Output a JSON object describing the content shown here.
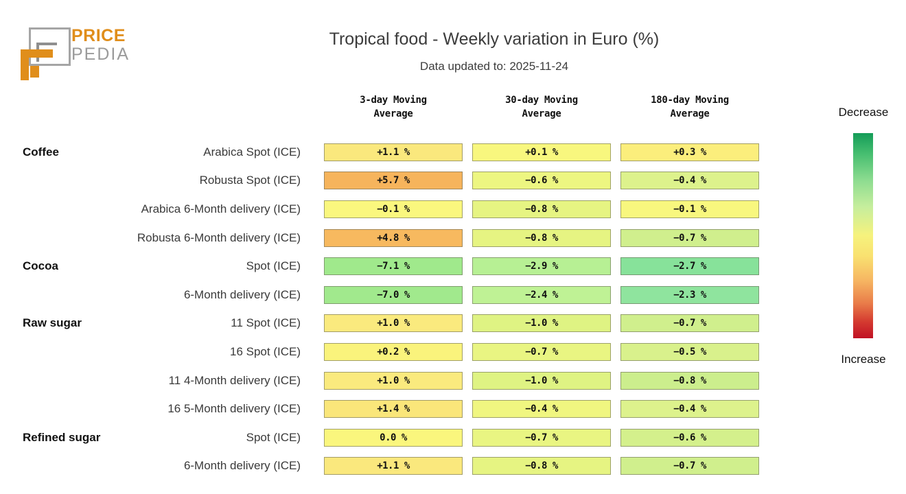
{
  "logo": {
    "brand_line1": "PRICE",
    "brand_line2": "PEDIA"
  },
  "colors": {
    "brand_orange": "#e08e1b",
    "brand_gray": "#9b9b9b",
    "cell_border": "#69695a",
    "title_text": "#3c3c3c"
  },
  "header": {
    "title": "Tropical food - Weekly variation in Euro (%)",
    "subtitle": "Data updated to: 2025-11-24"
  },
  "columns": [
    {
      "line1": "3-day Moving",
      "line2": "Average"
    },
    {
      "line1": "30-day Moving",
      "line2": "Average"
    },
    {
      "line1": "180-day Moving",
      "line2": "Average"
    }
  ],
  "legend": {
    "top_label": "Decrease",
    "bottom_label": "Increase",
    "gradient": [
      "#149c58 0%",
      "#46be70 10%",
      "#8ddc90 23%",
      "#c6ee9d 36%",
      "#f6f27d 50%",
      "#f9e170 60%",
      "#f6b562 72%",
      "#e97c49 83%",
      "#d43a30 92%",
      "#c11224 100%"
    ]
  },
  "table": {
    "rows": [
      {
        "group": "Coffee",
        "label": "Arabica Spot (ICE)",
        "cells": [
          {
            "text": "+1.1 %",
            "color": "#fae87d"
          },
          {
            "text": "+0.1 %",
            "color": "#f8f77e"
          },
          {
            "text": "+0.3 %",
            "color": "#fbee7c"
          }
        ]
      },
      {
        "group": "",
        "label": "Robusta Spot (ICE)",
        "cells": [
          {
            "text": "+5.7 %",
            "color": "#f6b45c"
          },
          {
            "text": "−0.6 %",
            "color": "#edf681"
          },
          {
            "text": "−0.4 %",
            "color": "#ddf28c"
          }
        ]
      },
      {
        "group": "",
        "label": "Arabica 6-Month delivery (ICE)",
        "cells": [
          {
            "text": "−0.1 %",
            "color": "#faf77e"
          },
          {
            "text": "−0.8 %",
            "color": "#e6f482"
          },
          {
            "text": "−0.1 %",
            "color": "#f8f77e"
          }
        ]
      },
      {
        "group": "",
        "label": "Robusta 6-Month delivery (ICE)",
        "cells": [
          {
            "text": "+4.8 %",
            "color": "#f7b95f"
          },
          {
            "text": "−0.8 %",
            "color": "#e6f482"
          },
          {
            "text": "−0.7 %",
            "color": "#d0ef8d"
          }
        ]
      },
      {
        "group": "Cocoa",
        "label": "Spot (ICE)",
        "cells": [
          {
            "text": "−7.1 %",
            "color": "#a0e98c"
          },
          {
            "text": "−2.9 %",
            "color": "#b7f094"
          },
          {
            "text": "−2.7 %",
            "color": "#87e29a"
          }
        ]
      },
      {
        "group": "",
        "label": "6-Month delivery (ICE)",
        "cells": [
          {
            "text": "−7.0 %",
            "color": "#a1e98d"
          },
          {
            "text": "−2.4 %",
            "color": "#bff295"
          },
          {
            "text": "−2.3 %",
            "color": "#8fe49e"
          }
        ]
      },
      {
        "group": "Raw sugar",
        "label": "11 Spot (ICE)",
        "cells": [
          {
            "text": "+1.0 %",
            "color": "#faea7e"
          },
          {
            "text": "−1.0 %",
            "color": "#dff383"
          },
          {
            "text": "−0.7 %",
            "color": "#d0ef8d"
          }
        ]
      },
      {
        "group": "",
        "label": "16 Spot (ICE)",
        "cells": [
          {
            "text": "+0.2 %",
            "color": "#faf37c"
          },
          {
            "text": "−0.7 %",
            "color": "#e9f582"
          },
          {
            "text": "−0.5 %",
            "color": "#d9f18c"
          }
        ]
      },
      {
        "group": "",
        "label": "11 4-Month delivery (ICE)",
        "cells": [
          {
            "text": "+1.0 %",
            "color": "#faea7e"
          },
          {
            "text": "−1.0 %",
            "color": "#dff383"
          },
          {
            "text": "−0.8 %",
            "color": "#ccee8d"
          }
        ]
      },
      {
        "group": "",
        "label": "16 5-Month delivery (ICE)",
        "cells": [
          {
            "text": "+1.4 %",
            "color": "#fae67a"
          },
          {
            "text": "−0.4 %",
            "color": "#f0f680"
          },
          {
            "text": "−0.4 %",
            "color": "#ddf28c"
          }
        ]
      },
      {
        "group": "Refined sugar",
        "label": "Spot (ICE)",
        "cells": [
          {
            "text": "0.0 %",
            "color": "#faf67d"
          },
          {
            "text": "−0.7 %",
            "color": "#e9f582"
          },
          {
            "text": "−0.6 %",
            "color": "#d4f08c"
          }
        ]
      },
      {
        "group": "",
        "label": "6-Month delivery (ICE)",
        "cells": [
          {
            "text": "+1.1 %",
            "color": "#fae87d"
          },
          {
            "text": "−0.8 %",
            "color": "#e6f482"
          },
          {
            "text": "−0.7 %",
            "color": "#d0ef8d"
          }
        ]
      }
    ]
  },
  "chart_data": {
    "type": "heatmap",
    "title": "Tropical food - Weekly variation in Euro (%)",
    "subtitle": "Data updated to: 2025-11-24",
    "columns": [
      "3-day Moving Average",
      "30-day Moving Average",
      "180-day Moving Average"
    ],
    "row_groups": [
      "Coffee",
      "Coffee",
      "Coffee",
      "Coffee",
      "Cocoa",
      "Cocoa",
      "Raw sugar",
      "Raw sugar",
      "Raw sugar",
      "Raw sugar",
      "Refined sugar",
      "Refined sugar"
    ],
    "rows": [
      "Arabica Spot (ICE)",
      "Robusta Spot (ICE)",
      "Arabica 6-Month delivery (ICE)",
      "Robusta 6-Month delivery (ICE)",
      "Spot (ICE)",
      "6-Month delivery (ICE)",
      "11 Spot (ICE)",
      "16 Spot (ICE)",
      "11 4-Month delivery (ICE)",
      "16 5-Month delivery (ICE)",
      "Spot (ICE)",
      "6-Month delivery (ICE)"
    ],
    "values_pct": [
      [
        1.1,
        0.1,
        0.3
      ],
      [
        5.7,
        -0.6,
        -0.4
      ],
      [
        -0.1,
        -0.8,
        -0.1
      ],
      [
        4.8,
        -0.8,
        -0.7
      ],
      [
        -7.1,
        -2.9,
        -2.7
      ],
      [
        -7.0,
        -2.4,
        -2.3
      ],
      [
        1.0,
        -1.0,
        -0.7
      ],
      [
        0.2,
        -0.7,
        -0.5
      ],
      [
        1.0,
        -1.0,
        -0.8
      ],
      [
        1.4,
        -0.4,
        -0.4
      ],
      [
        0.0,
        -0.7,
        -0.6
      ],
      [
        1.1,
        -0.8,
        -0.7
      ]
    ],
    "colorbar": {
      "top_label": "Decrease",
      "bottom_label": "Increase",
      "scale": "green (decrease) -> yellow (0) -> orange/red (increase)",
      "legend_position": "right"
    },
    "grid": false
  }
}
